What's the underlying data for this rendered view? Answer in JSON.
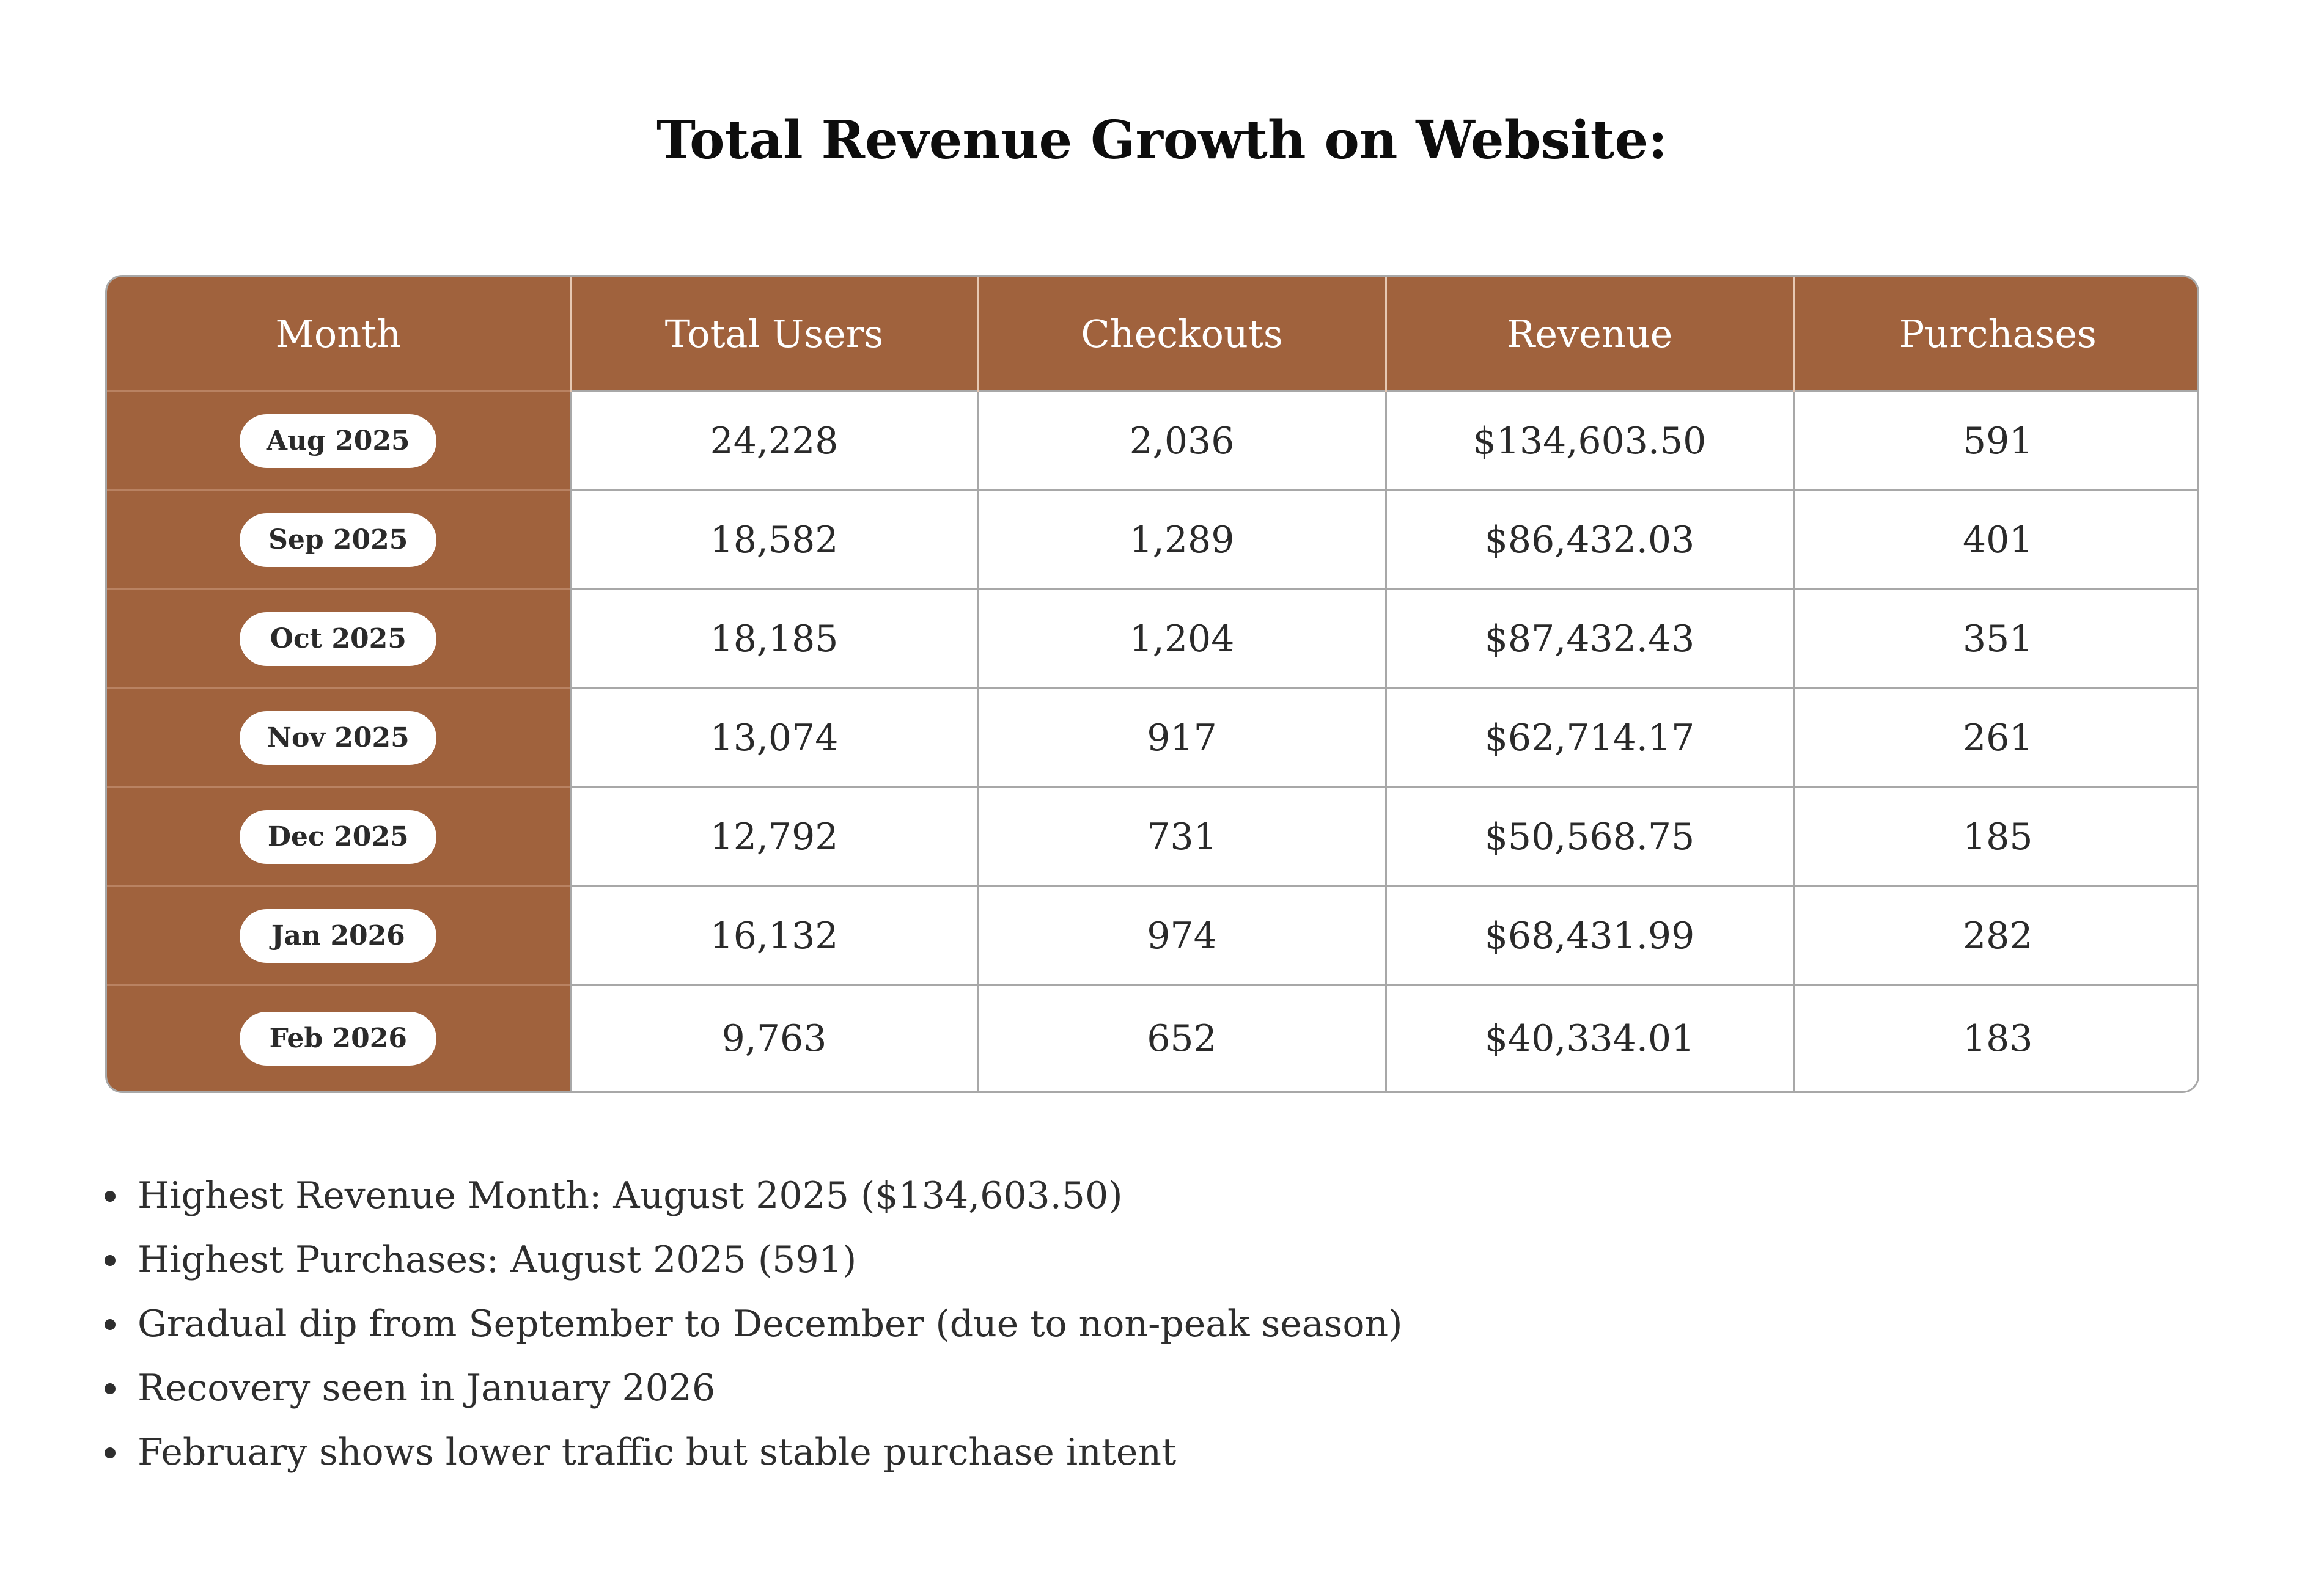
{
  "title": "Total Revenue Growth on Website:",
  "table": {
    "headers": [
      "Month",
      "Total Users",
      "Checkouts",
      "Revenue",
      "Purchases"
    ],
    "rows": [
      {
        "month": "Aug 2025",
        "users": "24,228",
        "checkouts": "2,036",
        "revenue": "$134,603.50",
        "purchases": "591"
      },
      {
        "month": "Sep 2025",
        "users": "18,582",
        "checkouts": "1,289",
        "revenue": "$86,432.03",
        "purchases": "401"
      },
      {
        "month": "Oct 2025",
        "users": "18,185",
        "checkouts": "1,204",
        "revenue": "$87,432.43",
        "purchases": "351"
      },
      {
        "month": "Nov 2025",
        "users": "13,074",
        "checkouts": "917",
        "revenue": "$62,714.17",
        "purchases": "261"
      },
      {
        "month": "Dec 2025",
        "users": "12,792",
        "checkouts": "731",
        "revenue": "$50,568.75",
        "purchases": "185"
      },
      {
        "month": "Jan 2026",
        "users": "16,132",
        "checkouts": "974",
        "revenue": "$68,431.99",
        "purchases": "282"
      },
      {
        "month": "Feb 2026",
        "users": "9,763",
        "checkouts": "652",
        "revenue": "$40,334.01",
        "purchases": "183"
      }
    ]
  },
  "notes": [
    "Highest Revenue Month: August 2025 ($134,603.50)",
    "Highest Purchases: August 2025 (591)",
    "Gradual dip from September to December (due to non-peak season)",
    "Recovery seen in January 2026",
    "February shows lower traffic but stable purchase intent"
  ],
  "colors": {
    "header_bg": "#a0623d",
    "pill_bg": "#ffffff",
    "border": "#a8a8a8"
  }
}
